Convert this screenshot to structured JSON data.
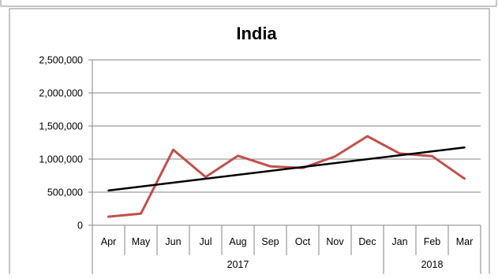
{
  "chart_data": {
    "type": "line",
    "title": "India",
    "categories": [
      "Apr",
      "May",
      "Jun",
      "Jul",
      "Aug",
      "Sep",
      "Oct",
      "Nov",
      "Dec",
      "Jan",
      "Feb",
      "Mar"
    ],
    "year_groups": [
      {
        "label": "2017",
        "span": 9
      },
      {
        "label": "2018",
        "span": 3
      }
    ],
    "series": [
      {
        "values": [
          130000,
          175000,
          1140000,
          730000,
          1050000,
          890000,
          865000,
          1040000,
          1345000,
          1085000,
          1045000,
          705000
        ],
        "color": "#C0504D"
      }
    ],
    "trendline": {
      "kind": "linear",
      "start": 525000,
      "end": 1175000,
      "color": "#000000"
    },
    "ylim": [
      0,
      2500000
    ],
    "yticks": [
      0,
      500000,
      1000000,
      1500000,
      2000000,
      2500000
    ],
    "ytick_labels": [
      "0",
      "500,000",
      "1,000,000",
      "1,500,000",
      "2,000,000",
      "2,500,000"
    ],
    "grid": true,
    "legend": "none",
    "xlabel": "",
    "ylabel": ""
  }
}
